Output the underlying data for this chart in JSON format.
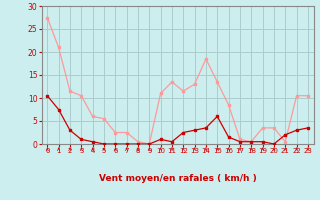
{
  "x": [
    0,
    1,
    2,
    3,
    4,
    5,
    6,
    7,
    8,
    9,
    10,
    11,
    12,
    13,
    14,
    15,
    16,
    17,
    18,
    19,
    20,
    21,
    22,
    23
  ],
  "mean_wind": [
    10.5,
    7.5,
    3.0,
    1.0,
    0.5,
    0.0,
    0.0,
    0.0,
    0.0,
    0.0,
    1.0,
    0.5,
    2.5,
    3.0,
    3.5,
    6.0,
    1.5,
    0.5,
    0.5,
    0.5,
    0.0,
    2.0,
    3.0,
    3.5
  ],
  "gust_wind": [
    27.5,
    21.0,
    11.5,
    10.5,
    6.0,
    5.5,
    2.5,
    2.5,
    0.5,
    0.0,
    11.0,
    13.5,
    11.5,
    13.0,
    18.5,
    13.5,
    8.5,
    1.0,
    0.5,
    3.5,
    3.5,
    0.5,
    10.5,
    10.5
  ],
  "mean_color": "#cc0000",
  "gust_color": "#ff9999",
  "bg_color": "#cceeee",
  "grid_color": "#aacccc",
  "xlabel": "Vent moyen/en rafales ( km/h )",
  "ylim": [
    0,
    30
  ],
  "yticks": [
    0,
    5,
    10,
    15,
    20,
    25,
    30
  ],
  "xticks": [
    0,
    1,
    2,
    3,
    4,
    5,
    6,
    7,
    8,
    9,
    10,
    11,
    12,
    13,
    14,
    15,
    16,
    17,
    18,
    19,
    20,
    21,
    22,
    23
  ],
  "xlabel_color": "#cc0000",
  "tick_color": "#cc0000",
  "axis_color": "#888888",
  "arrow_angles_deg": [
    210,
    210,
    210,
    210,
    210,
    210,
    210,
    210,
    210,
    210,
    210,
    210,
    210,
    225,
    225,
    45,
    45,
    45,
    45,
    45,
    45,
    315,
    315,
    315
  ]
}
